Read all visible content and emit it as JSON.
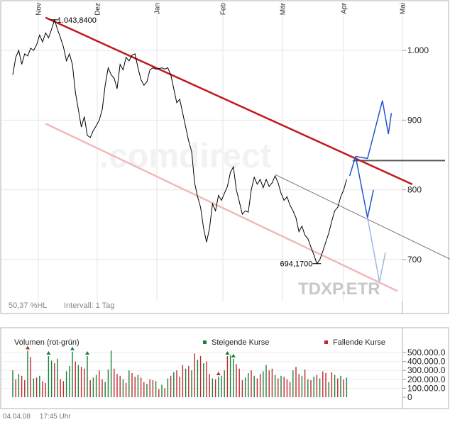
{
  "chart_data": [
    {
      "type": "line",
      "title": "",
      "months": [
        "Nov",
        "Dez",
        "Jan",
        "Feb",
        "Mär",
        "Apr",
        "Mai"
      ],
      "y_ticks": [
        "1.000",
        "900",
        "800",
        "700"
      ],
      "y_tick_values": [
        1000,
        900,
        800,
        700
      ],
      "ylim": [
        640,
        1060
      ],
      "grid": true,
      "high_label": "1.043,8400",
      "high_value": 1043.84,
      "low_label": "694,1700",
      "low_value": 694.17,
      "watermark": ".comdirect",
      "symbol": "TDXP.ETR",
      "range_label": "50,37 %HL",
      "interval_label": "Intervall: 1 Tag",
      "price_series": [
        {
          "d": 0,
          "v": 965
        },
        {
          "d": 1,
          "v": 990
        },
        {
          "d": 2,
          "v": 1000
        },
        {
          "d": 3,
          "v": 980
        },
        {
          "d": 4,
          "v": 995
        },
        {
          "d": 5,
          "v": 992
        },
        {
          "d": 6,
          "v": 1003
        },
        {
          "d": 7,
          "v": 1000
        },
        {
          "d": 8,
          "v": 1008
        },
        {
          "d": 9,
          "v": 1022
        },
        {
          "d": 10,
          "v": 1012
        },
        {
          "d": 11,
          "v": 1025
        },
        {
          "d": 12,
          "v": 1018
        },
        {
          "d": 13,
          "v": 1030
        },
        {
          "d": 14,
          "v": 1043.84
        },
        {
          "d": 15,
          "v": 1030
        },
        {
          "d": 16,
          "v": 1018
        },
        {
          "d": 17,
          "v": 1005
        },
        {
          "d": 18,
          "v": 985
        },
        {
          "d": 19,
          "v": 995
        },
        {
          "d": 20,
          "v": 980
        },
        {
          "d": 21,
          "v": 940
        },
        {
          "d": 22,
          "v": 915
        },
        {
          "d": 23,
          "v": 890
        },
        {
          "d": 24,
          "v": 905
        },
        {
          "d": 25,
          "v": 878
        },
        {
          "d": 26,
          "v": 875
        },
        {
          "d": 27,
          "v": 885
        },
        {
          "d": 28,
          "v": 892
        },
        {
          "d": 29,
          "v": 900
        },
        {
          "d": 30,
          "v": 915
        },
        {
          "d": 31,
          "v": 950
        },
        {
          "d": 32,
          "v": 975
        },
        {
          "d": 33,
          "v": 965
        },
        {
          "d": 34,
          "v": 960
        },
        {
          "d": 35,
          "v": 945
        },
        {
          "d": 36,
          "v": 980
        },
        {
          "d": 37,
          "v": 972
        },
        {
          "d": 38,
          "v": 990
        },
        {
          "d": 39,
          "v": 985
        },
        {
          "d": 40,
          "v": 993
        },
        {
          "d": 41,
          "v": 995
        },
        {
          "d": 42,
          "v": 975
        },
        {
          "d": 43,
          "v": 958
        },
        {
          "d": 44,
          "v": 950
        },
        {
          "d": 45,
          "v": 955
        },
        {
          "d": 46,
          "v": 972
        },
        {
          "d": 47,
          "v": 975
        },
        {
          "d": 48,
          "v": 973
        },
        {
          "d": 49,
          "v": 974
        },
        {
          "d": 50,
          "v": 975
        },
        {
          "d": 51,
          "v": 973
        },
        {
          "d": 52,
          "v": 975
        },
        {
          "d": 53,
          "v": 965
        },
        {
          "d": 54,
          "v": 945
        },
        {
          "d": 55,
          "v": 925
        },
        {
          "d": 56,
          "v": 930
        },
        {
          "d": 57,
          "v": 910
        },
        {
          "d": 58,
          "v": 890
        },
        {
          "d": 59,
          "v": 870
        },
        {
          "d": 60,
          "v": 855
        },
        {
          "d": 61,
          "v": 810
        },
        {
          "d": 62,
          "v": 790
        },
        {
          "d": 63,
          "v": 775
        },
        {
          "d": 64,
          "v": 745
        },
        {
          "d": 65,
          "v": 725
        },
        {
          "d": 66,
          "v": 745
        },
        {
          "d": 67,
          "v": 780
        },
        {
          "d": 68,
          "v": 770
        },
        {
          "d": 69,
          "v": 792
        },
        {
          "d": 70,
          "v": 785
        },
        {
          "d": 71,
          "v": 795
        },
        {
          "d": 72,
          "v": 805
        },
        {
          "d": 73,
          "v": 825
        },
        {
          "d": 74,
          "v": 833
        },
        {
          "d": 75,
          "v": 800
        },
        {
          "d": 76,
          "v": 783
        },
        {
          "d": 77,
          "v": 765
        },
        {
          "d": 78,
          "v": 770
        },
        {
          "d": 79,
          "v": 768
        },
        {
          "d": 80,
          "v": 800
        },
        {
          "d": 81,
          "v": 818
        },
        {
          "d": 82,
          "v": 808
        },
        {
          "d": 83,
          "v": 815
        },
        {
          "d": 84,
          "v": 803
        },
        {
          "d": 85,
          "v": 815
        },
        {
          "d": 86,
          "v": 805
        },
        {
          "d": 87,
          "v": 810
        },
        {
          "d": 88,
          "v": 820
        },
        {
          "d": 89,
          "v": 810
        },
        {
          "d": 90,
          "v": 795
        },
        {
          "d": 91,
          "v": 785
        },
        {
          "d": 92,
          "v": 790
        },
        {
          "d": 93,
          "v": 778
        },
        {
          "d": 94,
          "v": 770
        },
        {
          "d": 95,
          "v": 760
        },
        {
          "d": 96,
          "v": 740
        },
        {
          "d": 97,
          "v": 748
        },
        {
          "d": 98,
          "v": 735
        },
        {
          "d": 99,
          "v": 730
        },
        {
          "d": 100,
          "v": 718
        },
        {
          "d": 101,
          "v": 707
        },
        {
          "d": 102,
          "v": 694.17
        },
        {
          "d": 103,
          "v": 700
        },
        {
          "d": 104,
          "v": 712
        },
        {
          "d": 105,
          "v": 725
        },
        {
          "d": 106,
          "v": 738
        },
        {
          "d": 107,
          "v": 755
        },
        {
          "d": 108,
          "v": 770
        },
        {
          "d": 109,
          "v": 775
        },
        {
          "d": 110,
          "v": 790
        },
        {
          "d": 111,
          "v": 800
        },
        {
          "d": 112,
          "v": 815
        }
      ]
    },
    {
      "type": "bar",
      "title": "Volumen (rot-grün)",
      "legend_up": "Steigende Kurse",
      "legend_down": "Fallende Kurse",
      "y_ticks": [
        "500.000.0",
        "400.000.0",
        "300.000.0",
        "200.000.0",
        "100.000.0",
        "0"
      ],
      "y_tick_values": [
        500000,
        400000,
        300000,
        200000,
        100000,
        0
      ],
      "ylim": [
        0,
        500000
      ],
      "volumes": [
        300000,
        200000,
        260000,
        240000,
        190000,
        520000,
        450000,
        210000,
        220000,
        240000,
        180000,
        160000,
        460000,
        410000,
        380000,
        430000,
        200000,
        180000,
        290000,
        350000,
        510000,
        400000,
        360000,
        340000,
        320000,
        460000,
        190000,
        220000,
        250000,
        300000,
        200000,
        170000,
        310000,
        520000,
        320000,
        260000,
        240000,
        200000,
        160000,
        300000,
        270000,
        230000,
        250000,
        220000,
        170000,
        150000,
        200000,
        190000,
        180000,
        90000,
        140000,
        100000,
        210000,
        240000,
        280000,
        300000,
        230000,
        360000,
        320000,
        350000,
        300000,
        490000,
        420000,
        460000,
        380000,
        400000,
        260000,
        210000,
        200000,
        230000,
        240000,
        300000,
        460000,
        470000,
        430000,
        370000,
        320000,
        190000,
        220000,
        270000,
        300000,
        240000,
        210000,
        260000,
        290000,
        360000,
        300000,
        320000,
        250000,
        210000,
        240000,
        230000,
        200000,
        170000,
        300000,
        340000,
        260000,
        240000,
        310000,
        200000,
        190000,
        230000,
        250000,
        210000,
        290000,
        270000,
        170000,
        280000,
        250000,
        210000,
        240000,
        200000,
        220000
      ],
      "directions": [
        "g",
        "r",
        "g",
        "r",
        "r",
        "g",
        "r",
        "g",
        "r",
        "g",
        "r",
        "r",
        "g",
        "g",
        "r",
        "g",
        "r",
        "r",
        "g",
        "g",
        "g",
        "r",
        "g",
        "r",
        "r",
        "g",
        "r",
        "g",
        "g",
        "r",
        "r",
        "g",
        "g",
        "g",
        "r",
        "r",
        "r",
        "g",
        "r",
        "g",
        "r",
        "r",
        "g",
        "r",
        "r",
        "g",
        "r",
        "r",
        "g",
        "r",
        "g",
        "r",
        "g",
        "r",
        "g",
        "r",
        "r",
        "r",
        "g",
        "r",
        "g",
        "r",
        "g",
        "r",
        "g",
        "r",
        "r",
        "g",
        "r",
        "g",
        "g",
        "g",
        "r",
        "g",
        "g",
        "r",
        "r",
        "r",
        "g",
        "g",
        "r",
        "g",
        "r",
        "r",
        "g",
        "g",
        "r",
        "r",
        "g",
        "r",
        "g",
        "r",
        "r",
        "r",
        "g",
        "r",
        "r",
        "g",
        "r",
        "g",
        "r",
        "g",
        "r",
        "g",
        "r",
        "r",
        "g",
        "r",
        "g",
        "r",
        "g",
        "r",
        "g"
      ],
      "arrow_up_days": [
        12,
        20,
        25,
        72,
        74
      ],
      "arrow_down_days": [
        5,
        69
      ]
    }
  ],
  "footer": {
    "date": "04.04.08",
    "time": "17:45 Uhr"
  }
}
